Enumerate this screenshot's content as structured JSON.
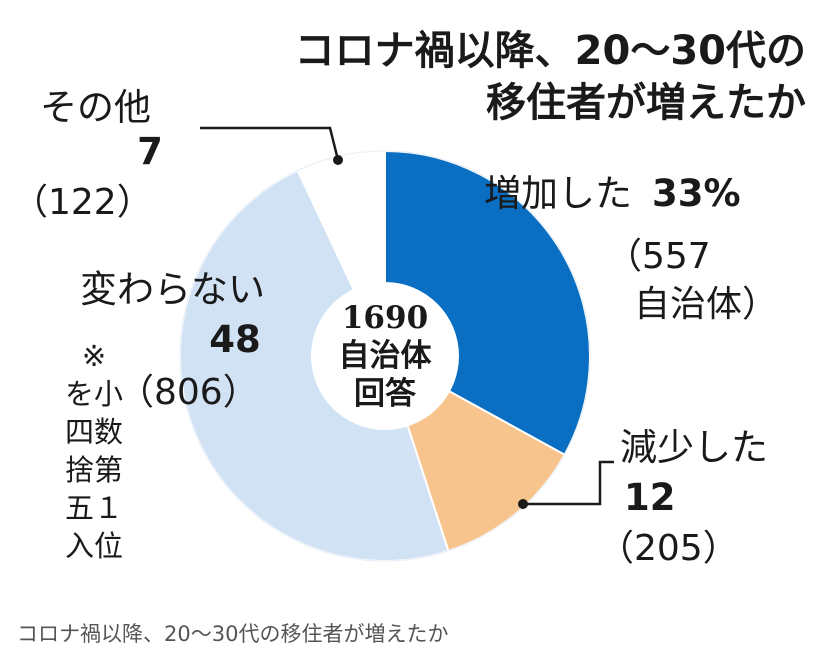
{
  "chart_data": {
    "type": "pie",
    "title": [
      "コロナ禍以降、20〜30代の",
      "移住者が増えたか"
    ],
    "center_label": [
      "1690",
      "自治体",
      "回答"
    ],
    "slices": [
      {
        "label": "増加した",
        "value_text": "33%",
        "value": 33,
        "count_text": [
          "（557",
          "自治体）"
        ],
        "count": 557,
        "color": "#0a6fc2"
      },
      {
        "label": "減少した",
        "value_text": "12",
        "value": 12,
        "count_text": [
          "（205）"
        ],
        "count": 205,
        "color": "#f7c48d"
      },
      {
        "label": "変わらない",
        "value_text": "48",
        "value": 48,
        "count_text": [
          "（806）"
        ],
        "count": 806,
        "color": "#d0e2f4"
      },
      {
        "label": "その他",
        "value_text": "7",
        "value": 7,
        "count_text": [
          "（122）"
        ],
        "count": 122,
        "color": "#ffffff"
      }
    ],
    "note": [
      "※",
      "を小",
      "四数",
      "捨第",
      "五１",
      "入位"
    ]
  },
  "caption": "コロナ禍以降、20〜30代の移住者が増えたか"
}
